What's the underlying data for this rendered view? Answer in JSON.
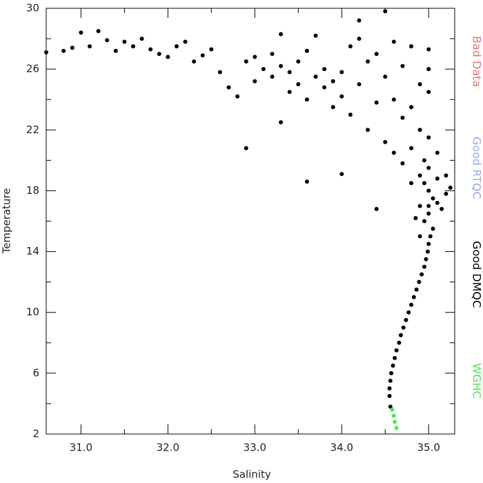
{
  "chart_data": {
    "type": "scatter",
    "xlabel": "Salinity",
    "ylabel": "Temperature",
    "xlim": [
      30.6,
      35.3
    ],
    "ylim": [
      2,
      30
    ],
    "xticks": [
      {
        "value": 31,
        "label": "31.0"
      },
      {
        "value": 32,
        "label": "32.0"
      },
      {
        "value": 33,
        "label": "33.0"
      },
      {
        "value": 34,
        "label": "34.0"
      },
      {
        "value": 35,
        "label": "35.0"
      }
    ],
    "xminorticks": [
      31.5,
      32.5,
      33.5,
      34.5
    ],
    "yticks": [
      2,
      6,
      10,
      14,
      18,
      22,
      26,
      30
    ],
    "yminorticks": [
      4,
      8,
      12,
      16,
      20,
      24,
      28
    ],
    "grid": false,
    "legend": "right",
    "series": [
      {
        "name": "Bad Data",
        "color": "#f07070",
        "x": [],
        "values": []
      },
      {
        "name": "Good RTQC",
        "color": "#9aa8f0",
        "x": [],
        "values": []
      },
      {
        "name": "Good DMQC",
        "color": "#000000",
        "x": [
          30.6,
          30.8,
          30.9,
          31.0,
          31.1,
          31.2,
          31.3,
          31.4,
          31.5,
          31.6,
          31.7,
          31.8,
          31.9,
          32.0,
          32.1,
          32.2,
          32.3,
          32.4,
          32.5,
          32.6,
          32.7,
          32.8,
          32.9,
          33.0,
          33.0,
          33.1,
          33.2,
          33.2,
          33.3,
          33.3,
          33.4,
          33.4,
          33.5,
          33.5,
          33.6,
          33.6,
          33.7,
          33.7,
          33.8,
          33.8,
          33.9,
          33.9,
          34.0,
          34.0,
          34.1,
          34.1,
          34.2,
          34.2,
          34.3,
          34.3,
          34.4,
          34.4,
          34.5,
          34.5,
          34.5,
          34.6,
          34.6,
          34.6,
          34.7,
          34.7,
          34.7,
          34.8,
          34.8,
          34.8,
          34.8,
          34.9,
          34.9,
          34.9,
          34.9,
          34.95,
          35.0,
          35.0,
          35.0,
          35.0,
          35.0,
          35.0,
          35.05,
          35.05,
          35.1,
          35.1,
          35.1,
          35.15,
          35.2,
          35.2,
          35.25,
          34.95,
          34.95,
          35.0,
          34.9,
          34.85,
          32.9,
          33.6,
          34.4,
          33.3,
          34.0,
          34.2,
          35.0,
          34.56,
          34.55,
          34.55,
          34.56,
          34.57,
          34.59,
          34.61,
          34.63,
          34.66,
          34.68,
          34.71,
          34.74,
          34.77,
          34.8,
          34.83,
          34.86,
          34.89,
          34.92,
          34.95,
          34.97,
          34.99,
          35.0,
          35.02
        ],
        "values": [
          27.1,
          27.2,
          27.4,
          28.4,
          27.5,
          28.5,
          27.9,
          27.2,
          27.8,
          27.5,
          28.0,
          27.3,
          27.0,
          26.8,
          27.5,
          27.8,
          26.5,
          26.9,
          27.3,
          25.8,
          24.8,
          24.2,
          26.5,
          26.8,
          25.2,
          26.0,
          27.0,
          25.5,
          28.3,
          26.2,
          25.8,
          24.5,
          26.5,
          25.0,
          27.2,
          24.0,
          25.5,
          28.2,
          26.0,
          24.8,
          25.2,
          23.5,
          25.8,
          24.2,
          27.5,
          23.0,
          28.0,
          25.0,
          26.5,
          22.0,
          27.0,
          23.8,
          29.8,
          25.5,
          21.2,
          27.8,
          24.0,
          20.5,
          26.2,
          22.8,
          19.8,
          27.5,
          23.5,
          20.8,
          18.5,
          25.0,
          22.0,
          19.0,
          17.0,
          16.0,
          26.0,
          24.5,
          21.5,
          19.5,
          18.0,
          16.5,
          17.5,
          15.5,
          20.5,
          18.8,
          17.2,
          16.8,
          19.0,
          17.8,
          18.2,
          18.5,
          20.0,
          17.0,
          15.0,
          16.2,
          20.8,
          18.6,
          16.8,
          22.5,
          19.1,
          29.2,
          27.3,
          3.8,
          4.5,
          5.0,
          5.5,
          6.0,
          6.5,
          7.0,
          7.5,
          8.0,
          8.5,
          9.0,
          9.5,
          10.0,
          10.5,
          11.0,
          11.5,
          12.0,
          12.5,
          13.0,
          13.5,
          14.0,
          14.5,
          15.0
        ]
      },
      {
        "name": "WGHC",
        "color": "#44ee44",
        "x": [
          34.58,
          34.6,
          34.61,
          34.63
        ],
        "values": [
          3.6,
          3.2,
          2.8,
          2.4
        ]
      }
    ]
  }
}
